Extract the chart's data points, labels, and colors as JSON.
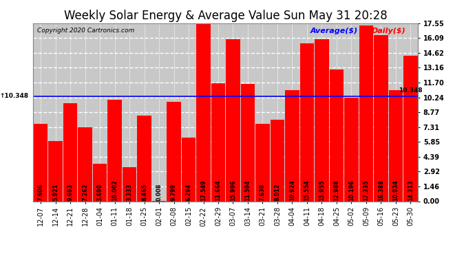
{
  "title": "Weekly Solar Energy & Average Value Sun May 31 20:28",
  "copyright": "Copyright 2020 Cartronics.com",
  "legend_average": "Average($)",
  "legend_daily": "Daily($)",
  "categories": [
    "12-07",
    "12-14",
    "12-21",
    "12-28",
    "01-04",
    "01-11",
    "01-18",
    "01-25",
    "02-01",
    "02-08",
    "02-15",
    "02-22",
    "02-29",
    "03-07",
    "03-14",
    "03-21",
    "03-28",
    "04-04",
    "04-11",
    "04-18",
    "04-25",
    "05-02",
    "05-09",
    "05-16",
    "05-23",
    "05-30"
  ],
  "values": [
    7.606,
    5.921,
    9.693,
    7.262,
    3.69,
    10.002,
    3.333,
    8.465,
    0.008,
    9.799,
    6.294,
    17.549,
    11.664,
    15.996,
    11.594,
    7.638,
    8.012,
    10.924,
    15.554,
    15.955,
    12.988,
    10.196,
    17.335,
    16.388,
    10.934,
    14.313
  ],
  "average_line": 10.348,
  "bar_color": "#FF0000",
  "average_line_color": "#0000FF",
  "background_color": "#FFFFFF",
  "plot_bg_color": "#C8C8C8",
  "grid_color": "#FFFFFF",
  "text_color_bar": "#000000",
  "ylim": [
    0,
    17.55
  ],
  "yticks": [
    0.0,
    1.46,
    2.92,
    4.39,
    5.85,
    7.31,
    8.77,
    10.24,
    11.7,
    13.16,
    14.62,
    16.09,
    17.55
  ],
  "title_fontsize": 12,
  "tick_fontsize": 7,
  "bar_label_fontsize": 5.8,
  "average_label": "10.348"
}
